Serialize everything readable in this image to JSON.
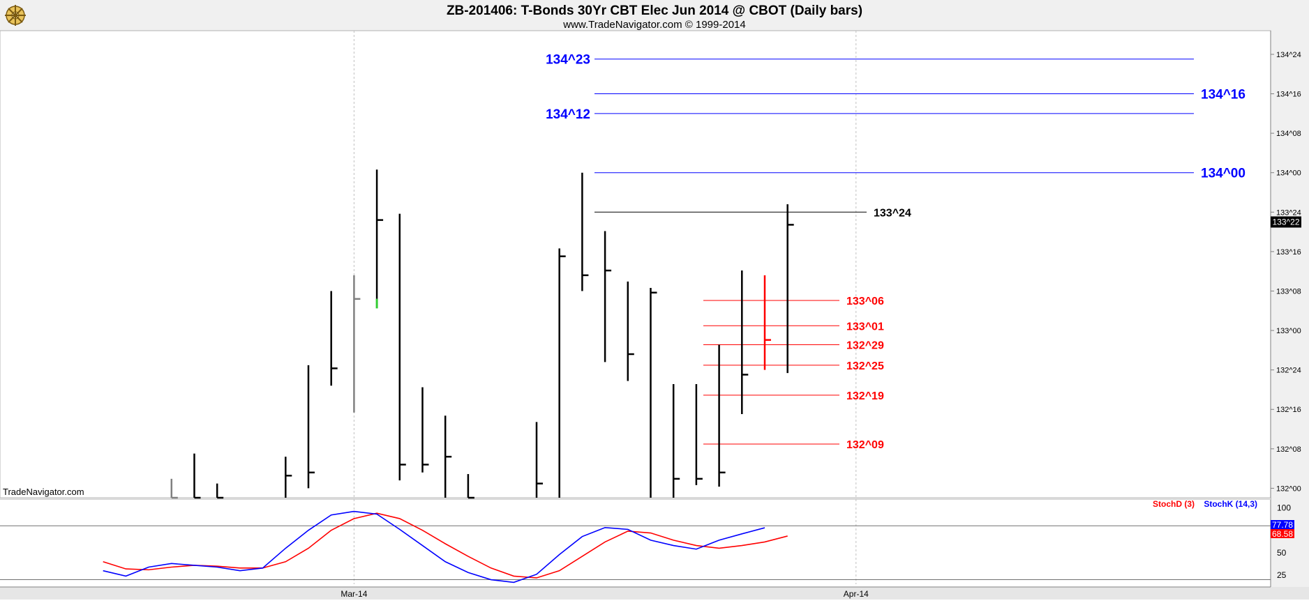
{
  "header": {
    "title": "ZB-201406:  T-Bonds 30Yr CBT Elec Jun 2014 @ CBOT  (Daily bars)",
    "subtitle": "www.TradeNavigator.com © 1999-2014",
    "logo_icon": "ship-wheel-icon",
    "watermark": "TradeNavigator.com"
  },
  "chart_data": [
    {
      "type": "ohlc",
      "price_unit": "32nds",
      "y_ticks": [
        "132^00",
        "132^08",
        "132^16",
        "132^24",
        "133^00",
        "133^08",
        "133^16",
        "133^24",
        "134^00",
        "134^08",
        "134^16",
        "134^24"
      ],
      "y_range": [
        131.94,
        134.9
      ],
      "x_ticks": [
        {
          "label": "Mar-14",
          "day": 12
        },
        {
          "label": "Apr-14",
          "day": 34
        }
      ],
      "last_price": {
        "label": "133^22",
        "value": 133.6875
      },
      "bars": [
        {
          "day": 4,
          "high": 132.06,
          "low": 131.94,
          "close": 131.94,
          "color": "#808080"
        },
        {
          "day": 5,
          "high": 132.22,
          "low": 131.94,
          "close": 131.94,
          "color": "#000000"
        },
        {
          "day": 6,
          "high": 132.03,
          "low": 131.94,
          "close": 131.94,
          "color": "#000000"
        },
        {
          "day": 9,
          "high": 132.2,
          "low": 131.94,
          "close": 132.08,
          "color": "#000000"
        },
        {
          "day": 10,
          "high": 132.78,
          "low": 132.0,
          "close": 132.1,
          "color": "#000000"
        },
        {
          "day": 11,
          "high": 133.25,
          "low": 132.65,
          "close": 132.76,
          "color": "#000000"
        },
        {
          "day": 12,
          "high": 133.35,
          "low": 132.48,
          "close": 133.2,
          "color": "#808080"
        },
        {
          "day": 13,
          "high": 134.02,
          "low": 133.2,
          "close": 133.7,
          "color": "#000000"
        },
        {
          "day": 14,
          "high": 133.74,
          "low": 132.05,
          "close": 132.15,
          "color": "#000000"
        },
        {
          "day": 15,
          "high": 132.64,
          "low": 132.1,
          "close": 132.15,
          "color": "#000000"
        },
        {
          "day": 16,
          "high": 132.46,
          "low": 131.94,
          "close": 132.2,
          "color": "#000000"
        },
        {
          "day": 17,
          "high": 132.09,
          "low": 131.94,
          "close": 131.94,
          "color": "#000000"
        },
        {
          "day": 20,
          "high": 132.42,
          "low": 131.94,
          "close": 132.03,
          "color": "#000000"
        },
        {
          "day": 21,
          "high": 133.52,
          "low": 131.94,
          "close": 133.47,
          "color": "#000000"
        },
        {
          "day": 22,
          "high": 134.0,
          "low": 133.25,
          "close": 133.35,
          "color": "#000000"
        },
        {
          "day": 23,
          "high": 133.63,
          "low": 132.8,
          "close": 133.38,
          "color": "#000000"
        },
        {
          "day": 24,
          "high": 133.31,
          "low": 132.68,
          "close": 132.85,
          "color": "#000000"
        },
        {
          "day": 25,
          "high": 133.27,
          "low": 131.94,
          "close": 133.24,
          "color": "#000000"
        },
        {
          "day": 26,
          "high": 132.66,
          "low": 131.94,
          "close": 132.06,
          "color": "#000000"
        },
        {
          "day": 27,
          "high": 132.66,
          "low": 132.02,
          "close": 132.06,
          "color": "#000000"
        },
        {
          "day": 28,
          "high": 132.91,
          "low": 132.01,
          "close": 132.1,
          "color": "#000000"
        },
        {
          "day": 29,
          "high": 133.38,
          "low": 132.47,
          "close": 132.72,
          "color": "#000000"
        },
        {
          "day": 30,
          "high": 133.35,
          "low": 132.75,
          "close": 132.94,
          "color": "#ff0000"
        },
        {
          "day": 31,
          "high": 133.8,
          "low": 132.73,
          "close": 133.67,
          "color": "#000000"
        }
      ],
      "horizontal_levels": [
        {
          "label": "134^23",
          "value": 134.72,
          "color": "#0000ff",
          "label_side": "left"
        },
        {
          "label": "134^16",
          "value": 134.5,
          "color": "#0000ff",
          "label_side": "right"
        },
        {
          "label": "134^12",
          "value": 134.375,
          "color": "#0000ff",
          "label_side": "left"
        },
        {
          "label": "134^00",
          "value": 134.0,
          "color": "#0000ff",
          "label_side": "right"
        },
        {
          "label": "133^24",
          "value": 133.75,
          "color": "#000000",
          "label_side": "right"
        },
        {
          "label": "133^06",
          "value": 133.19,
          "color": "#ff0000",
          "label_side": "right"
        },
        {
          "label": "133^01",
          "value": 133.03,
          "color": "#ff0000",
          "label_side": "right"
        },
        {
          "label": "132^29",
          "value": 132.91,
          "color": "#ff0000",
          "label_side": "right"
        },
        {
          "label": "132^25",
          "value": 132.78,
          "color": "#ff0000",
          "label_side": "right"
        },
        {
          "label": "132^19",
          "value": 132.59,
          "color": "#ff0000",
          "label_side": "right"
        },
        {
          "label": "132^09",
          "value": 132.28,
          "color": "#ff0000",
          "label_side": "right"
        }
      ]
    },
    {
      "type": "line",
      "y_ticks": [
        25,
        50,
        75,
        100
      ],
      "y_range": [
        15,
        105
      ],
      "reference_lines": [
        20,
        80
      ],
      "legend": [
        "StochD (3)",
        "StochK (14,3)"
      ],
      "last_values": {
        "stochk": "77.78",
        "stochd": "68.58"
      },
      "series": [
        {
          "name": "StochD (3)",
          "color": "#ff0000",
          "points": [
            [
              1,
              40
            ],
            [
              2,
              32
            ],
            [
              3,
              31
            ],
            [
              4,
              34
            ],
            [
              5,
              36
            ],
            [
              6,
              35
            ],
            [
              7,
              33
            ],
            [
              8,
              33
            ],
            [
              9,
              40
            ],
            [
              10,
              55
            ],
            [
              11,
              75
            ],
            [
              12,
              88
            ],
            [
              13,
              94
            ],
            [
              14,
              88
            ],
            [
              15,
              75
            ],
            [
              16,
              60
            ],
            [
              17,
              46
            ],
            [
              18,
              33
            ],
            [
              19,
              24
            ],
            [
              20,
              22
            ],
            [
              21,
              30
            ],
            [
              22,
              46
            ],
            [
              23,
              62
            ],
            [
              24,
              74
            ],
            [
              25,
              72
            ],
            [
              26,
              64
            ],
            [
              27,
              58
            ],
            [
              28,
              55
            ],
            [
              29,
              58
            ],
            [
              30,
              62
            ],
            [
              31,
              68.58
            ]
          ]
        },
        {
          "name": "StochK (14,3)",
          "color": "#0000ff",
          "points": [
            [
              1,
              30
            ],
            [
              2,
              24
            ],
            [
              3,
              34
            ],
            [
              4,
              38
            ],
            [
              5,
              36
            ],
            [
              6,
              34
            ],
            [
              7,
              30
            ],
            [
              8,
              33
            ],
            [
              9,
              55
            ],
            [
              10,
              75
            ],
            [
              11,
              92
            ],
            [
              12,
              96
            ],
            [
              13,
              93
            ],
            [
              14,
              76
            ],
            [
              15,
              58
            ],
            [
              16,
              40
            ],
            [
              17,
              28
            ],
            [
              18,
              20
            ],
            [
              19,
              17
            ],
            [
              20,
              26
            ],
            [
              21,
              48
            ],
            [
              22,
              68
            ],
            [
              23,
              78
            ],
            [
              24,
              76
            ],
            [
              25,
              64
            ],
            [
              26,
              58
            ],
            [
              27,
              54
            ],
            [
              28,
              64
            ],
            [
              29,
              71
            ],
            [
              30,
              77.78
            ]
          ]
        }
      ]
    }
  ]
}
